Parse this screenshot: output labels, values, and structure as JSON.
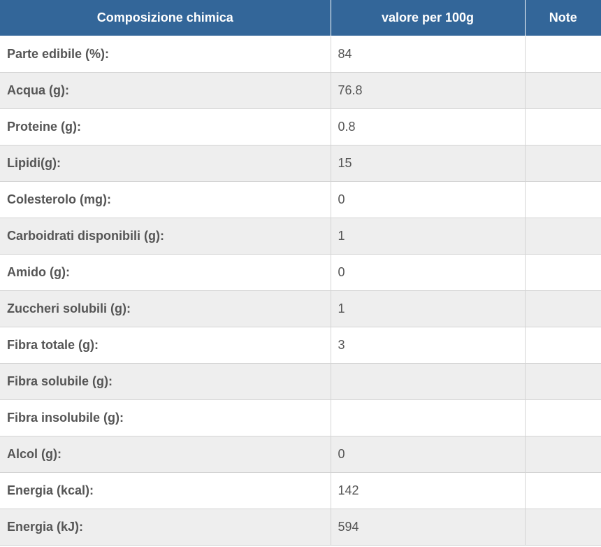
{
  "table": {
    "headers": [
      "Composizione chimica",
      "valore per 100g",
      "Note"
    ],
    "rows": [
      {
        "label": "Parte edibile (%):",
        "value": "84",
        "note": ""
      },
      {
        "label": "Acqua (g):",
        "value": "76.8",
        "note": ""
      },
      {
        "label": "Proteine (g):",
        "value": "0.8",
        "note": ""
      },
      {
        "label": "Lipidi(g):",
        "value": "15",
        "note": ""
      },
      {
        "label": "Colesterolo (mg):",
        "value": "0",
        "note": ""
      },
      {
        "label": "Carboidrati disponibili (g):",
        "value": "1",
        "note": ""
      },
      {
        "label": "Amido (g):",
        "value": "0",
        "note": ""
      },
      {
        "label": "Zuccheri solubili (g):",
        "value": "1",
        "note": ""
      },
      {
        "label": "Fibra totale (g):",
        "value": "3",
        "note": ""
      },
      {
        "label": "Fibra solubile (g):",
        "value": "",
        "note": ""
      },
      {
        "label": "Fibra insolubile (g):",
        "value": "",
        "note": ""
      },
      {
        "label": "Alcol (g):",
        "value": "0",
        "note": ""
      },
      {
        "label": "Energia (kcal):",
        "value": "142",
        "note": ""
      },
      {
        "label": "Energia (kJ):",
        "value": "594",
        "note": ""
      }
    ]
  },
  "colors": {
    "header_bg": "#336699",
    "header_text": "#ffffff",
    "row_alt_bg": "#eeeeee",
    "grid_line": "#d4d4d4",
    "text": "#555555"
  }
}
